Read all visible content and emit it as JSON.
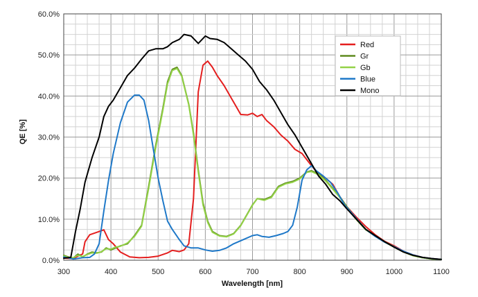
{
  "chart_data": {
    "type": "line",
    "xlabel": "Wavelength [nm]",
    "ylabel": "QE [%]",
    "xlim": [
      300,
      1100
    ],
    "ylim": [
      0,
      60
    ],
    "x_ticks": [
      "300",
      "400",
      "500",
      "600",
      "700",
      "800",
      "900",
      "1000",
      "1100"
    ],
    "y_ticks": [
      "0.0%",
      "10.0%",
      "20.0%",
      "30.0%",
      "40.0%",
      "50.0%",
      "60.0%"
    ],
    "grid": true,
    "legend_position": "top-right",
    "series": [
      {
        "name": "Red",
        "color": "#e41e1e",
        "points": [
          [
            300,
            0.5
          ],
          [
            320,
            0.4
          ],
          [
            330,
            1.0
          ],
          [
            340,
            1.5
          ],
          [
            345,
            4.5
          ],
          [
            355,
            6.2
          ],
          [
            370,
            6.8
          ],
          [
            385,
            7.4
          ],
          [
            395,
            5.0
          ],
          [
            405,
            4.0
          ],
          [
            420,
            2.0
          ],
          [
            440,
            0.8
          ],
          [
            460,
            0.6
          ],
          [
            480,
            0.7
          ],
          [
            500,
            1.0
          ],
          [
            520,
            1.8
          ],
          [
            530,
            2.4
          ],
          [
            545,
            2.1
          ],
          [
            555,
            2.5
          ],
          [
            565,
            4.0
          ],
          [
            575,
            15.0
          ],
          [
            585,
            41.0
          ],
          [
            595,
            47.5
          ],
          [
            605,
            48.5
          ],
          [
            615,
            47.0
          ],
          [
            625,
            45.0
          ],
          [
            640,
            42.5
          ],
          [
            655,
            39.5
          ],
          [
            665,
            37.5
          ],
          [
            675,
            35.5
          ],
          [
            690,
            35.4
          ],
          [
            700,
            35.8
          ],
          [
            710,
            35.0
          ],
          [
            720,
            35.5
          ],
          [
            730,
            34.0
          ],
          [
            745,
            32.5
          ],
          [
            760,
            30.5
          ],
          [
            775,
            29.0
          ],
          [
            790,
            27.0
          ],
          [
            805,
            26.0
          ],
          [
            815,
            24.5
          ],
          [
            825,
            23.0
          ],
          [
            840,
            21.0
          ],
          [
            855,
            20.0
          ],
          [
            870,
            18.5
          ],
          [
            885,
            15.5
          ],
          [
            900,
            13.0
          ],
          [
            920,
            10.5
          ],
          [
            940,
            8.2
          ],
          [
            960,
            6.2
          ],
          [
            980,
            4.6
          ],
          [
            1000,
            3.5
          ],
          [
            1020,
            2.2
          ],
          [
            1040,
            1.3
          ],
          [
            1060,
            0.7
          ],
          [
            1080,
            0.4
          ],
          [
            1100,
            0.2
          ]
        ]
      },
      {
        "name": "Gr",
        "color": "#5e8a1e",
        "points": [
          [
            300,
            1.2
          ],
          [
            310,
            0.8
          ],
          [
            320,
            0.5
          ],
          [
            330,
            1.5
          ],
          [
            340,
            0.8
          ],
          [
            350,
            1.5
          ],
          [
            360,
            2.0
          ],
          [
            370,
            1.8
          ],
          [
            380,
            2.0
          ],
          [
            390,
            3.0
          ],
          [
            400,
            2.5
          ],
          [
            410,
            3.0
          ],
          [
            420,
            3.5
          ],
          [
            435,
            4.0
          ],
          [
            450,
            6.0
          ],
          [
            465,
            8.5
          ],
          [
            480,
            18.0
          ],
          [
            495,
            28.0
          ],
          [
            510,
            37.0
          ],
          [
            520,
            43.5
          ],
          [
            530,
            46.5
          ],
          [
            540,
            47.0
          ],
          [
            550,
            45.0
          ],
          [
            565,
            38.0
          ],
          [
            575,
            31.0
          ],
          [
            585,
            22.0
          ],
          [
            595,
            14.0
          ],
          [
            605,
            9.5
          ],
          [
            615,
            7.0
          ],
          [
            630,
            6.0
          ],
          [
            645,
            5.8
          ],
          [
            660,
            6.5
          ],
          [
            675,
            8.5
          ],
          [
            690,
            11.5
          ],
          [
            700,
            13.5
          ],
          [
            710,
            15.0
          ],
          [
            725,
            14.8
          ],
          [
            740,
            15.5
          ],
          [
            755,
            18.0
          ],
          [
            770,
            18.8
          ],
          [
            785,
            19.2
          ],
          [
            800,
            20.0
          ],
          [
            815,
            21.5
          ],
          [
            825,
            21.8
          ],
          [
            840,
            21.0
          ],
          [
            855,
            19.5
          ],
          [
            870,
            17.5
          ],
          [
            885,
            15.5
          ],
          [
            900,
            13.0
          ],
          [
            920,
            10.0
          ],
          [
            940,
            7.5
          ],
          [
            960,
            6.0
          ],
          [
            980,
            4.5
          ],
          [
            1000,
            3.3
          ],
          [
            1020,
            2.1
          ],
          [
            1040,
            1.2
          ],
          [
            1060,
            0.6
          ],
          [
            1080,
            0.3
          ],
          [
            1100,
            0.2
          ]
        ]
      },
      {
        "name": "Gb",
        "color": "#93d247",
        "points": [
          [
            300,
            1.0
          ],
          [
            310,
            0.7
          ],
          [
            320,
            0.6
          ],
          [
            330,
            1.2
          ],
          [
            340,
            0.9
          ],
          [
            350,
            1.4
          ],
          [
            360,
            1.8
          ],
          [
            370,
            1.7
          ],
          [
            380,
            2.1
          ],
          [
            390,
            2.8
          ],
          [
            400,
            2.7
          ],
          [
            410,
            3.2
          ],
          [
            420,
            3.4
          ],
          [
            435,
            4.2
          ],
          [
            450,
            5.8
          ],
          [
            465,
            8.3
          ],
          [
            480,
            17.5
          ],
          [
            495,
            27.5
          ],
          [
            510,
            36.5
          ],
          [
            520,
            43.0
          ],
          [
            530,
            46.2
          ],
          [
            540,
            46.7
          ],
          [
            550,
            44.8
          ],
          [
            565,
            37.8
          ],
          [
            575,
            30.5
          ],
          [
            585,
            21.5
          ],
          [
            595,
            13.5
          ],
          [
            605,
            9.2
          ],
          [
            615,
            6.8
          ],
          [
            630,
            5.9
          ],
          [
            645,
            5.7
          ],
          [
            660,
            6.4
          ],
          [
            675,
            8.4
          ],
          [
            690,
            11.4
          ],
          [
            700,
            13.4
          ],
          [
            710,
            15.0
          ],
          [
            725,
            14.6
          ],
          [
            740,
            15.3
          ],
          [
            755,
            17.8
          ],
          [
            770,
            18.6
          ],
          [
            785,
            19.0
          ],
          [
            800,
            19.8
          ],
          [
            815,
            21.4
          ],
          [
            825,
            21.6
          ],
          [
            840,
            20.8
          ],
          [
            855,
            19.3
          ],
          [
            870,
            17.3
          ],
          [
            885,
            15.3
          ],
          [
            900,
            12.8
          ],
          [
            920,
            9.9
          ],
          [
            940,
            7.4
          ],
          [
            960,
            5.9
          ],
          [
            980,
            4.4
          ],
          [
            1000,
            3.2
          ],
          [
            1020,
            2.0
          ],
          [
            1040,
            1.1
          ],
          [
            1060,
            0.6
          ],
          [
            1080,
            0.3
          ],
          [
            1100,
            0.2
          ]
        ]
      },
      {
        "name": "Blue",
        "color": "#1e78c8",
        "points": [
          [
            300,
            0.8
          ],
          [
            320,
            0.3
          ],
          [
            340,
            0.6
          ],
          [
            355,
            0.7
          ],
          [
            365,
            1.5
          ],
          [
            375,
            4.0
          ],
          [
            385,
            12.0
          ],
          [
            395,
            19.5
          ],
          [
            405,
            26.0
          ],
          [
            420,
            33.5
          ],
          [
            435,
            38.5
          ],
          [
            450,
            40.2
          ],
          [
            460,
            40.2
          ],
          [
            470,
            39.0
          ],
          [
            480,
            34.0
          ],
          [
            490,
            27.0
          ],
          [
            500,
            20.0
          ],
          [
            510,
            14.5
          ],
          [
            520,
            9.5
          ],
          [
            530,
            7.5
          ],
          [
            545,
            5.0
          ],
          [
            555,
            3.5
          ],
          [
            570,
            3.0
          ],
          [
            585,
            3.0
          ],
          [
            600,
            2.5
          ],
          [
            615,
            2.2
          ],
          [
            630,
            2.4
          ],
          [
            645,
            3.0
          ],
          [
            660,
            4.0
          ],
          [
            680,
            5.0
          ],
          [
            700,
            6.0
          ],
          [
            710,
            6.2
          ],
          [
            720,
            5.8
          ],
          [
            735,
            5.6
          ],
          [
            750,
            6.0
          ],
          [
            765,
            6.5
          ],
          [
            775,
            7.0
          ],
          [
            785,
            8.5
          ],
          [
            795,
            13.0
          ],
          [
            805,
            19.5
          ],
          [
            815,
            22.0
          ],
          [
            825,
            23.0
          ],
          [
            835,
            21.8
          ],
          [
            850,
            20.5
          ],
          [
            865,
            19.0
          ],
          [
            880,
            16.5
          ],
          [
            895,
            13.5
          ],
          [
            910,
            11.5
          ],
          [
            925,
            9.5
          ],
          [
            940,
            7.5
          ],
          [
            960,
            5.8
          ],
          [
            980,
            4.4
          ],
          [
            1000,
            3.3
          ],
          [
            1020,
            2.2
          ],
          [
            1040,
            1.3
          ],
          [
            1060,
            0.7
          ],
          [
            1080,
            0.4
          ],
          [
            1100,
            0.2
          ]
        ]
      },
      {
        "name": "Mono",
        "color": "#000000",
        "points": [
          [
            300,
            0.5
          ],
          [
            315,
            0.7
          ],
          [
            325,
            7.0
          ],
          [
            335,
            12.5
          ],
          [
            345,
            19.0
          ],
          [
            360,
            25.0
          ],
          [
            375,
            30.0
          ],
          [
            385,
            35.0
          ],
          [
            395,
            37.5
          ],
          [
            405,
            39.0
          ],
          [
            420,
            42.0
          ],
          [
            435,
            45.0
          ],
          [
            450,
            46.8
          ],
          [
            465,
            49.0
          ],
          [
            480,
            51.0
          ],
          [
            495,
            51.5
          ],
          [
            510,
            51.5
          ],
          [
            520,
            52.0
          ],
          [
            530,
            53.0
          ],
          [
            545,
            53.8
          ],
          [
            555,
            55.0
          ],
          [
            570,
            54.6
          ],
          [
            585,
            52.8
          ],
          [
            600,
            54.6
          ],
          [
            610,
            54.0
          ],
          [
            625,
            53.8
          ],
          [
            640,
            53.0
          ],
          [
            655,
            51.5
          ],
          [
            670,
            50.0
          ],
          [
            685,
            48.5
          ],
          [
            700,
            46.5
          ],
          [
            715,
            43.5
          ],
          [
            730,
            41.5
          ],
          [
            745,
            39.0
          ],
          [
            760,
            36.0
          ],
          [
            775,
            33.0
          ],
          [
            790,
            30.5
          ],
          [
            805,
            27.5
          ],
          [
            815,
            25.5
          ],
          [
            825,
            23.5
          ],
          [
            840,
            20.5
          ],
          [
            855,
            18.5
          ],
          [
            870,
            16.0
          ],
          [
            885,
            14.5
          ],
          [
            900,
            12.5
          ],
          [
            920,
            10.0
          ],
          [
            940,
            7.5
          ],
          [
            960,
            6.0
          ],
          [
            980,
            4.5
          ],
          [
            1000,
            3.2
          ],
          [
            1020,
            2.0
          ],
          [
            1040,
            1.2
          ],
          [
            1060,
            0.7
          ],
          [
            1080,
            0.4
          ],
          [
            1100,
            0.2
          ]
        ]
      }
    ]
  }
}
